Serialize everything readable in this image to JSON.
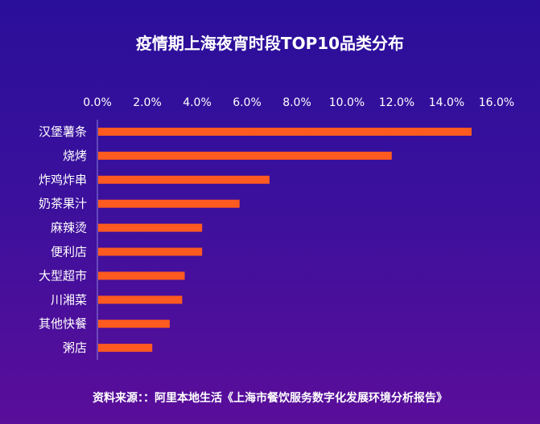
{
  "chart_data": {
    "type": "bar",
    "orientation": "horizontal",
    "title": "疫情期上海夜宵时段TOP10品类分布",
    "categories": [
      "汉堡薯条",
      "烧烤",
      "炸鸡炸串",
      "奶茶果汁",
      "麻辣烫",
      "便利店",
      "大型超市",
      "川湘菜",
      "其他快餐",
      "粥店"
    ],
    "values": [
      15.0,
      11.8,
      6.9,
      5.7,
      4.2,
      4.2,
      3.5,
      3.4,
      2.9,
      2.2
    ],
    "xlim": [
      0,
      16
    ],
    "xticks": [
      "0.0%",
      "2.0%",
      "4.0%",
      "6.0%",
      "8.0%",
      "10.0%",
      "12.0%",
      "14.0%",
      "16.0%"
    ],
    "x_axis_position": "top",
    "grid": false,
    "bar_color": "#ff5a1f"
  },
  "footer": {
    "source": "资料来源：：阿里本地生活《上海市餐饮服务数字化发展环境分析报告》"
  }
}
